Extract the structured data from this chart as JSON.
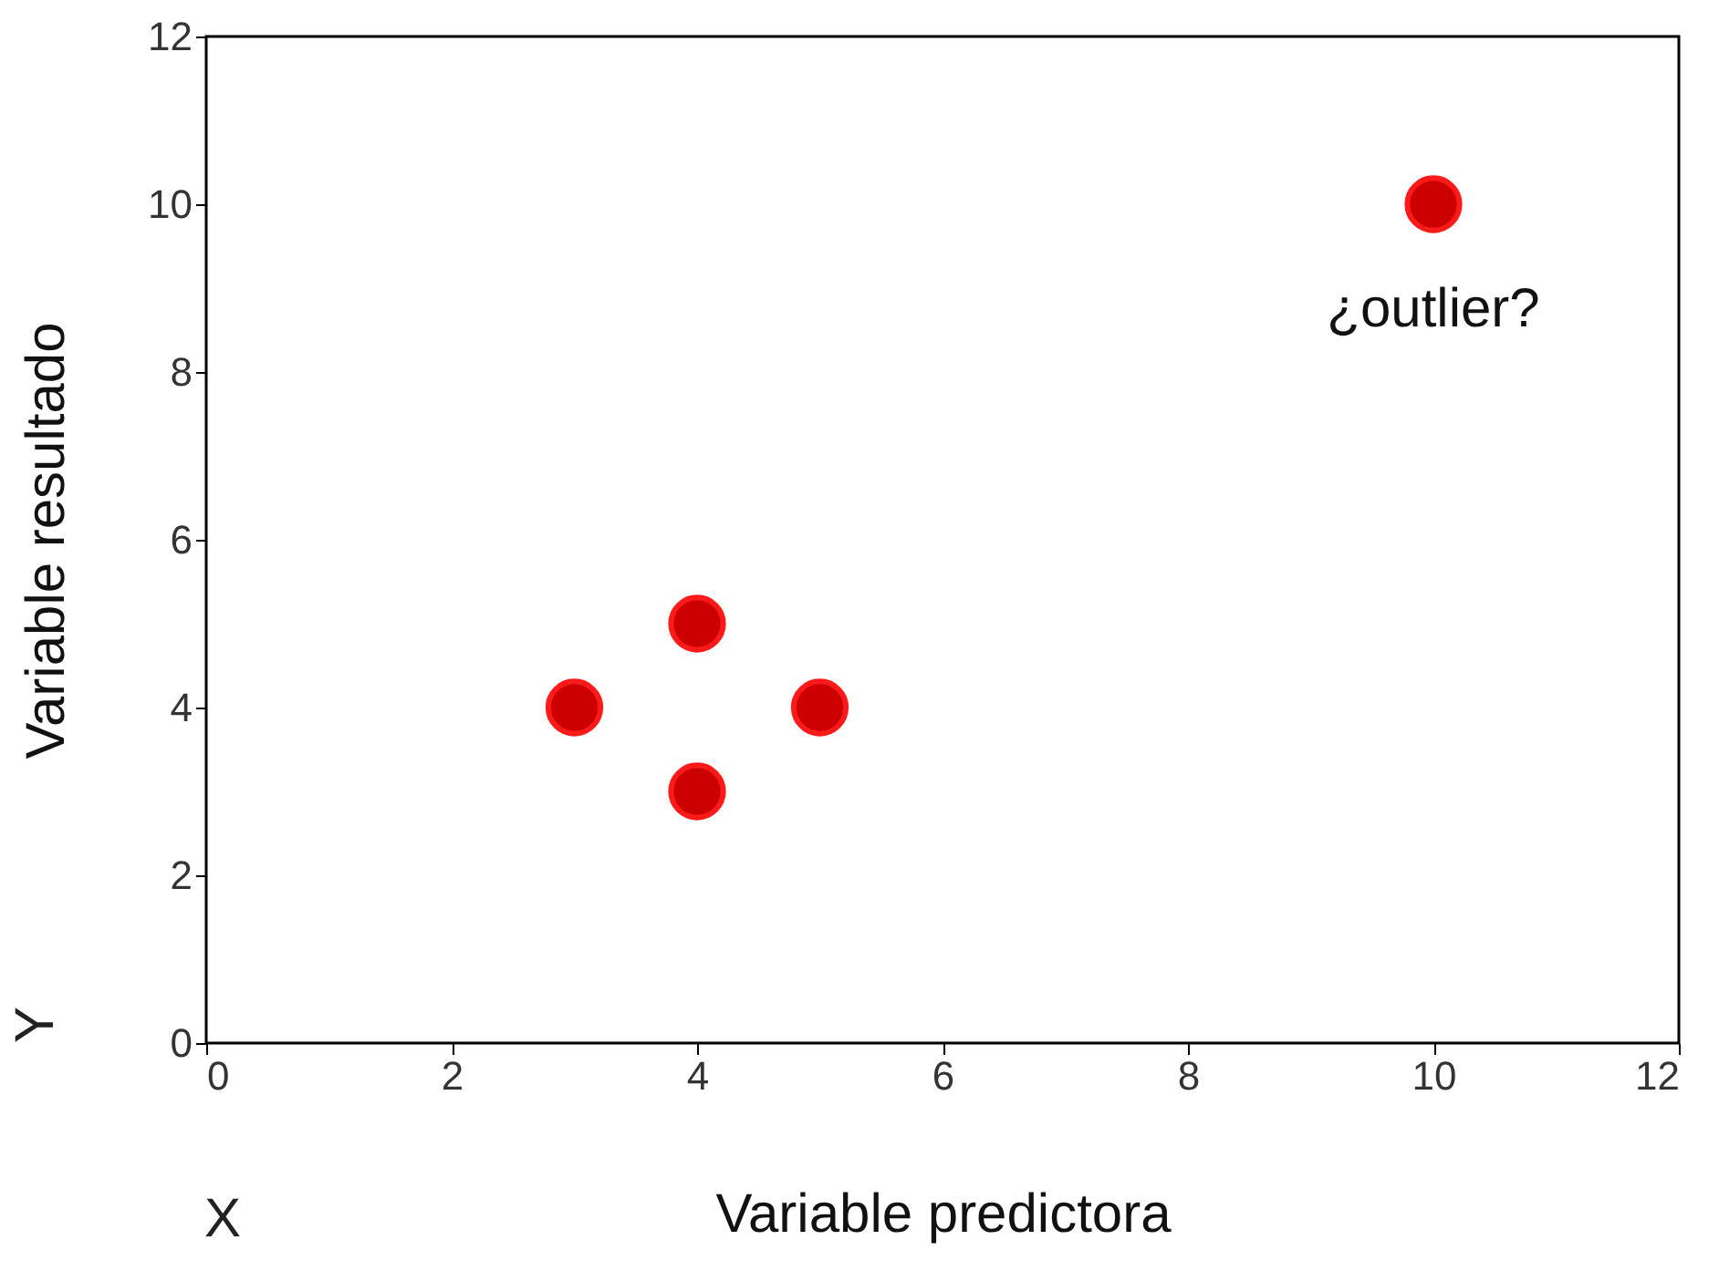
{
  "chart_data": {
    "type": "scatter",
    "xlabel": "Variable predictora",
    "ylabel": "Variable resultado",
    "x": [
      3,
      4,
      5,
      4,
      10
    ],
    "series": [
      {
        "color": "#cc0000",
        "values": [
          4,
          5,
          4,
          3,
          10
        ]
      }
    ],
    "xlim": [
      0,
      12
    ],
    "ylim": [
      0,
      12
    ],
    "xticks": [
      0,
      2,
      4,
      6,
      8,
      10,
      12
    ],
    "yticks": [
      0,
      2,
      4,
      6,
      8,
      10,
      12
    ],
    "grid": false,
    "marker": "circle",
    "annotations": [
      {
        "text": "¿outlier?",
        "x": 10,
        "y": 10
      },
      "Y",
      "X"
    ]
  }
}
